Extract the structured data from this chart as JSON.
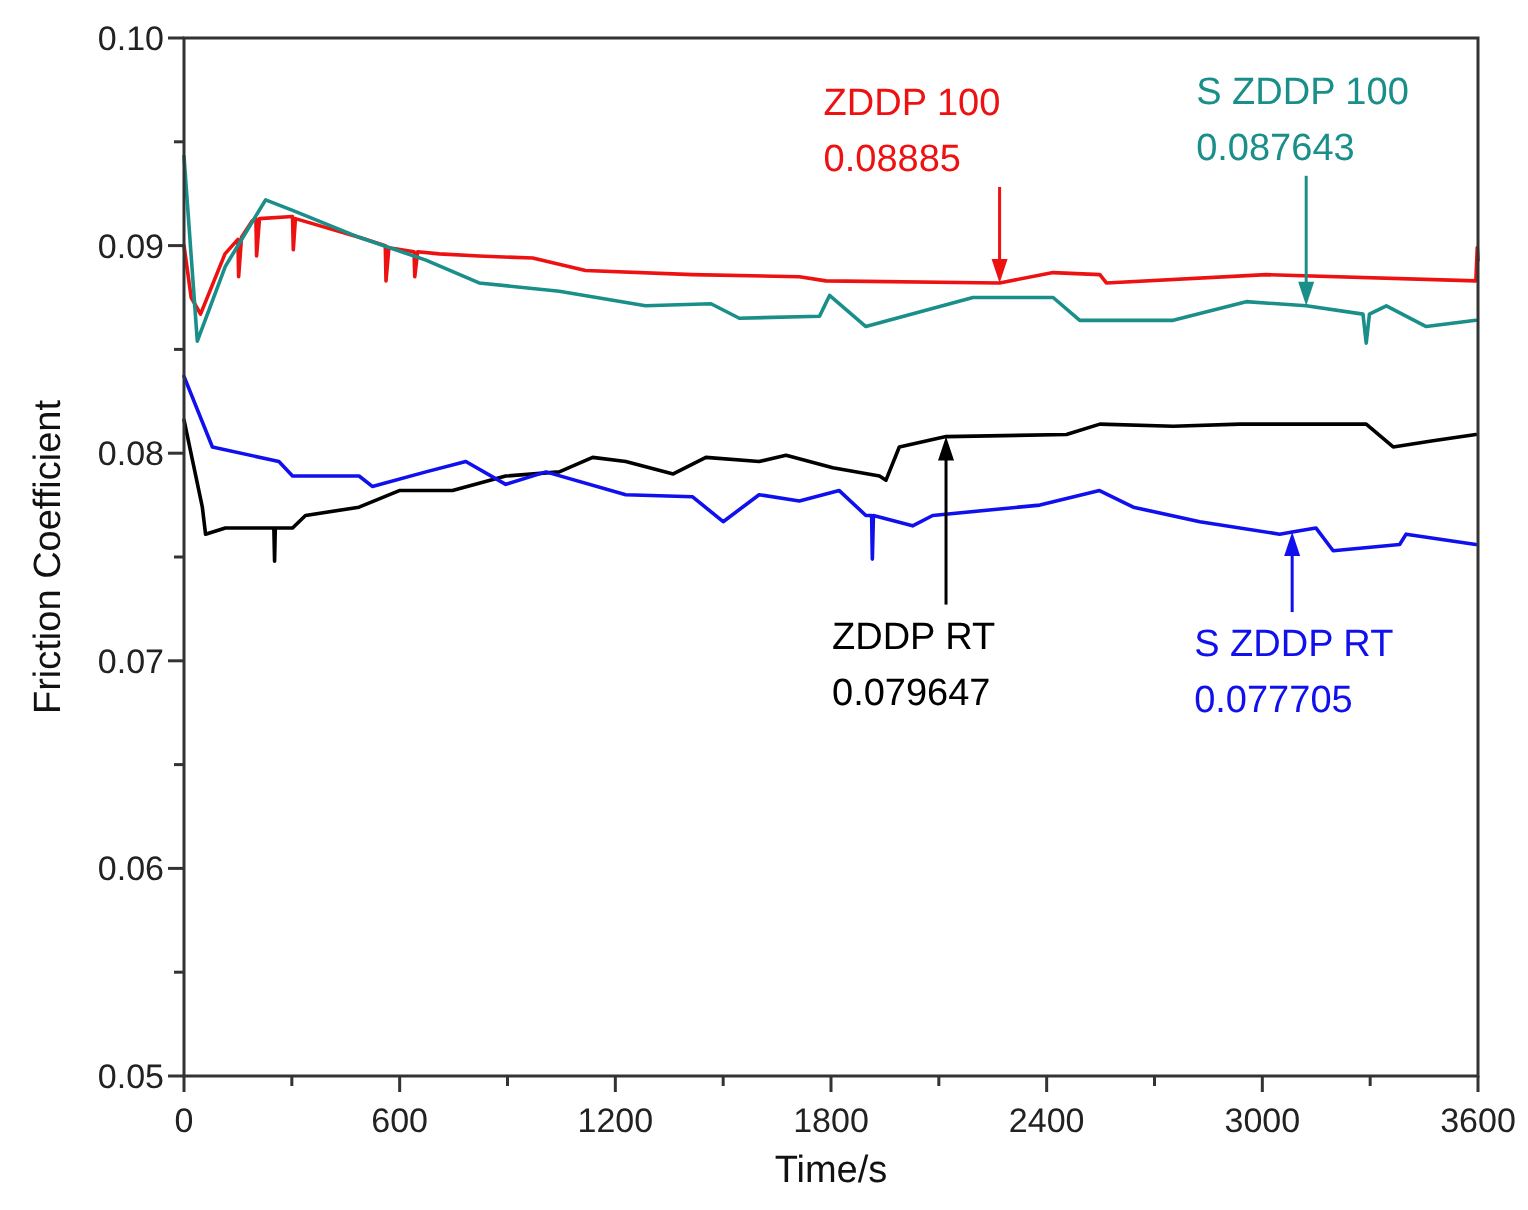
{
  "chart_data": {
    "type": "line",
    "xlabel": "Time/s",
    "ylabel": "Friction Coefficient",
    "xlim": [
      0,
      3600
    ],
    "xticks": [
      0,
      {
        "value": 300,
        "label": null
      },
      600,
      {
        "value": 900,
        "label": null
      },
      1200,
      {
        "value": 1500,
        "label": null
      },
      1800,
      {
        "value": 2100,
        "label": null
      },
      2400,
      {
        "value": 2700,
        "label": null
      },
      3000,
      {
        "value": 3300,
        "label": null
      },
      3600
    ],
    "ylim": [
      0.05,
      0.1
    ],
    "yticks": [
      {
        "value": 0.05,
        "label": "0.05"
      },
      {
        "value": 0.055,
        "label": null
      },
      {
        "value": 0.06,
        "label": "0.06"
      },
      {
        "value": 0.065,
        "label": null
      },
      {
        "value": 0.07,
        "label": "0.07"
      },
      {
        "value": 0.075,
        "label": null
      },
      {
        "value": 0.08,
        "label": "0.08"
      },
      {
        "value": 0.085,
        "label": null
      },
      {
        "value": 0.09,
        "label": "0.09"
      },
      {
        "value": 0.095,
        "label": null
      },
      {
        "value": 0.1,
        "label": "0.10"
      }
    ],
    "grid": false,
    "marker": "none",
    "line_style": "solid",
    "series": [
      {
        "color": "#ee1111",
        "x": [
          0,
          20,
          46,
          114,
          150,
          152,
          160,
          190,
          200,
          202,
          210,
          302,
          304,
          310,
          487,
          560,
          562,
          570,
          640,
          642,
          650,
          710,
          821,
          970,
          1117,
          1415,
          1712,
          1786,
          2269,
          2418,
          2548,
          2566,
          3011,
          3594,
          3598,
          3600
        ],
        "values": [
          0.09,
          0.0875,
          0.0867,
          0.0896,
          0.0903,
          0.0885,
          0.0904,
          0.0912,
          0.0913,
          0.0895,
          0.0913,
          0.0914,
          0.0898,
          0.0913,
          0.0904,
          0.09,
          0.0883,
          0.0899,
          0.0897,
          0.0885,
          0.0897,
          0.0896,
          0.0895,
          0.0894,
          0.0888,
          0.0886,
          0.0885,
          0.0883,
          0.0882,
          0.0887,
          0.0886,
          0.0882,
          0.0886,
          0.0883,
          0.0899,
          0.0893
        ]
      },
      {
        "color": "#1a8f8a",
        "x": [
          0,
          37,
          115,
          227,
          302,
          487,
          673,
          821,
          1044,
          1284,
          1466,
          1545,
          1768,
          1796,
          1897,
          2195,
          2418,
          2492,
          2752,
          2955,
          3122,
          3280,
          3289,
          3298,
          3345,
          3456,
          3594
        ],
        "values": [
          0.0943,
          0.0854,
          0.089,
          0.0922,
          0.0917,
          0.0904,
          0.0893,
          0.0882,
          0.0878,
          0.0871,
          0.0872,
          0.0865,
          0.0866,
          0.0876,
          0.0861,
          0.0875,
          0.0875,
          0.0864,
          0.0864,
          0.0873,
          0.0871,
          0.0867,
          0.0853,
          0.0867,
          0.0871,
          0.0861,
          0.0864
        ]
      },
      {
        "color": "#000000",
        "x": [
          0,
          51,
          60,
          115,
          250,
          252,
          254,
          302,
          338,
          487,
          599,
          747,
          895,
          1044,
          1137,
          1229,
          1361,
          1452,
          1600,
          1675,
          1805,
          1935,
          1953,
          1990,
          2120,
          2455,
          2548,
          2752,
          2938,
          3289,
          3364,
          3475,
          3594
        ],
        "values": [
          0.0816,
          0.0774,
          0.0761,
          0.0764,
          0.0764,
          0.0748,
          0.0764,
          0.0764,
          0.077,
          0.0774,
          0.0782,
          0.0782,
          0.0789,
          0.0791,
          0.0798,
          0.0796,
          0.079,
          0.0798,
          0.0796,
          0.0799,
          0.0793,
          0.0789,
          0.0787,
          0.0803,
          0.0808,
          0.0809,
          0.0814,
          0.0813,
          0.0814,
          0.0814,
          0.0803,
          0.0806,
          0.0809
        ]
      },
      {
        "color": "#1010ee",
        "x": [
          0,
          79,
          264,
          302,
          487,
          524,
          673,
          784,
          895,
          1007,
          1229,
          1415,
          1500,
          1600,
          1712,
          1823,
          1897,
          1913,
          1915,
          1918,
          2027,
          2083,
          2381,
          2547,
          2641,
          2826,
          3048,
          3083,
          3149,
          3197,
          3382,
          3400,
          3594
        ],
        "values": [
          0.0837,
          0.0803,
          0.0796,
          0.0789,
          0.0789,
          0.0784,
          0.0791,
          0.0796,
          0.0785,
          0.0791,
          0.078,
          0.0779,
          0.0767,
          0.078,
          0.0777,
          0.0782,
          0.077,
          0.077,
          0.0749,
          0.077,
          0.0765,
          0.077,
          0.0775,
          0.0782,
          0.0774,
          0.0767,
          0.0761,
          0.0762,
          0.0764,
          0.0753,
          0.0756,
          0.0761,
          0.0756
        ]
      }
    ],
    "annotations": [
      {
        "text": "ZDDP 100\n0.08885",
        "x": 2269,
        "y": 0.0882
      },
      {
        "text": "S ZDDP 100\n0.087643",
        "x": 3122,
        "y": 0.0871
      },
      {
        "text": "ZDDP RT\n0.079647",
        "x": 2120,
        "y": 0.0808
      },
      {
        "text": "S ZDDP RT\n0.077705",
        "x": 3083,
        "y": 0.0762
      }
    ]
  }
}
